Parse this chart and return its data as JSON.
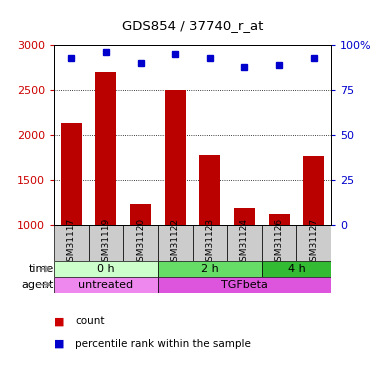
{
  "title": "GDS854 / 37740_r_at",
  "samples": [
    "GSM31117",
    "GSM31119",
    "GSM31120",
    "GSM31122",
    "GSM31123",
    "GSM31124",
    "GSM31126",
    "GSM31127"
  ],
  "counts": [
    2130,
    2700,
    1230,
    2500,
    1770,
    1190,
    1120,
    1760
  ],
  "percentile_ranks": [
    93,
    96,
    90,
    95,
    93,
    88,
    89,
    93
  ],
  "y_min": 1000,
  "y_max": 3000,
  "ylim_right": [
    0,
    100
  ],
  "yticks_left": [
    1000,
    1500,
    2000,
    2500,
    3000
  ],
  "yticks_right": [
    0,
    25,
    50,
    75,
    100
  ],
  "bar_color": "#bb0000",
  "dot_color": "#0000cc",
  "bar_width": 0.6,
  "time_groups": [
    {
      "label": "0 h",
      "start": 0,
      "end": 3,
      "color": "#ccffcc"
    },
    {
      "label": "2 h",
      "start": 3,
      "end": 6,
      "color": "#66dd66"
    },
    {
      "label": "4 h",
      "start": 6,
      "end": 8,
      "color": "#33bb33"
    }
  ],
  "agent_groups": [
    {
      "label": "untreated",
      "start": 0,
      "end": 3,
      "color": "#ee88ee"
    },
    {
      "label": "TGFbeta",
      "start": 3,
      "end": 8,
      "color": "#dd55dd"
    }
  ],
  "bg_color": "#ffffff",
  "tick_color_left": "#cc0000",
  "tick_color_right": "#0000cc",
  "xticklabel_bg": "#cccccc",
  "legend_count_color": "#cc0000",
  "legend_dot_color": "#0000cc",
  "right_axis_top_label": "100%"
}
